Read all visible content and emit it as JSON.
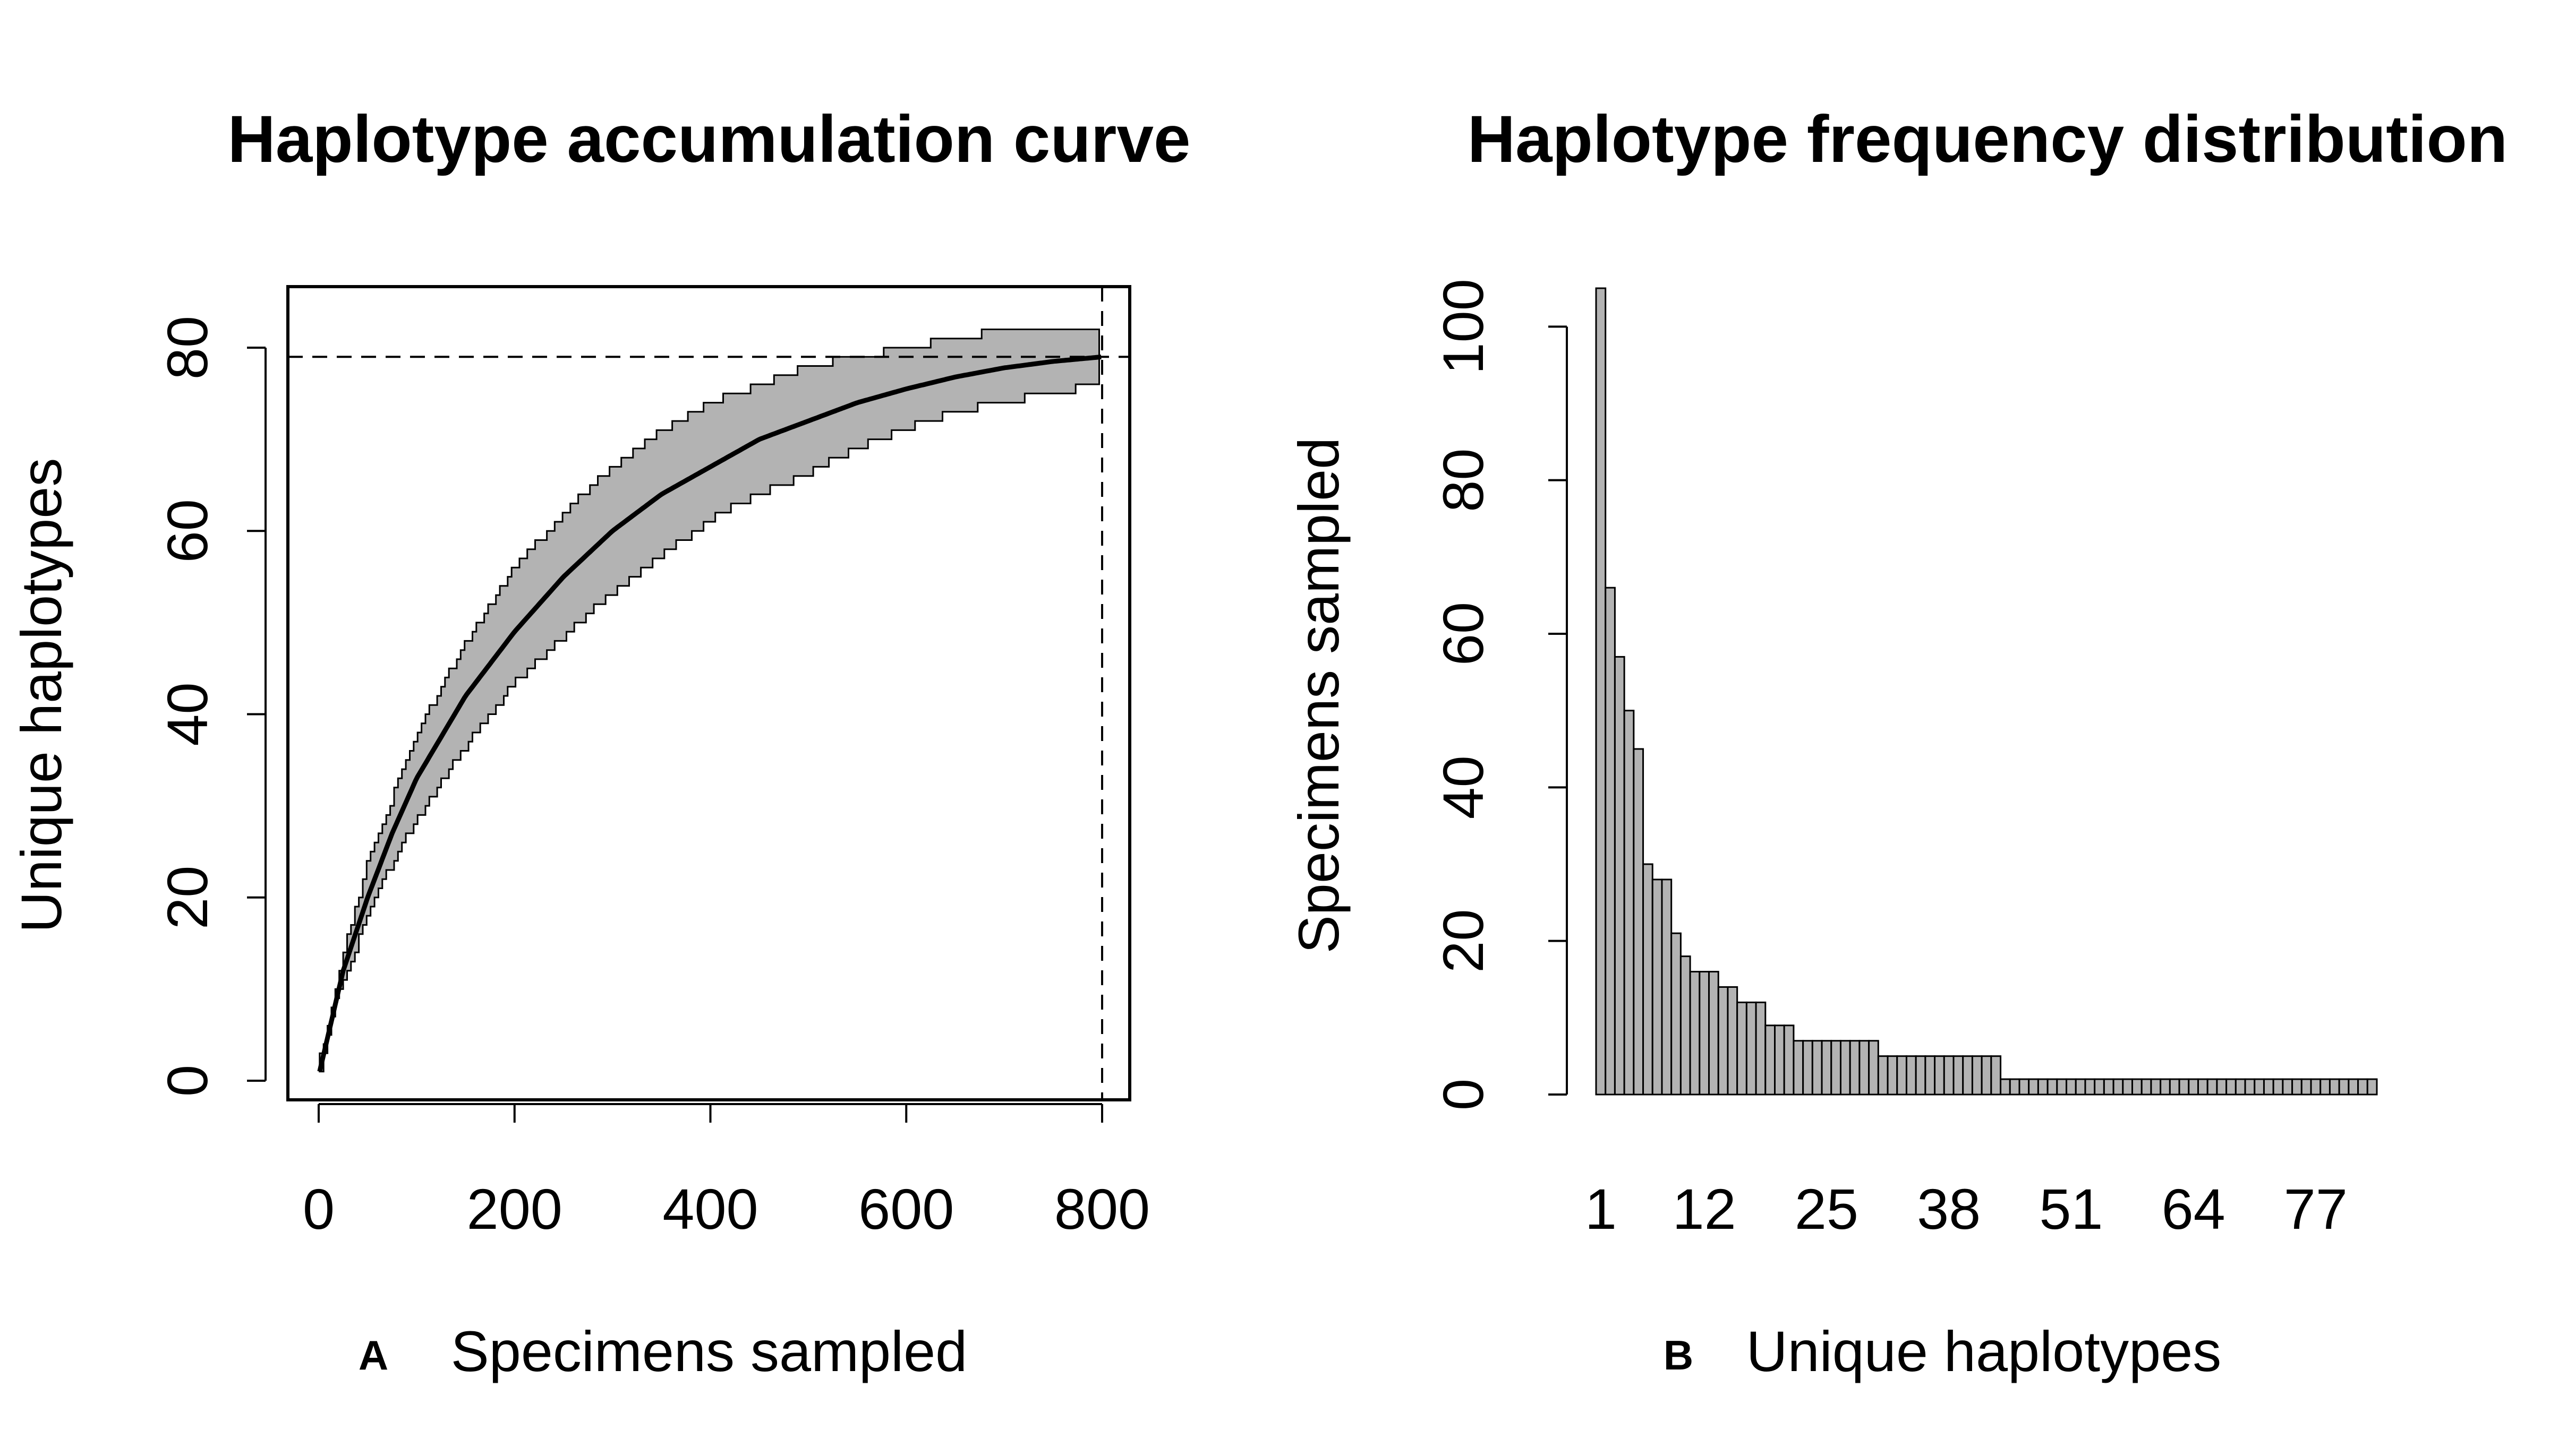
{
  "chart_data": [
    {
      "panel_label": "A",
      "type": "line",
      "title": "Haplotype accumulation curve",
      "xlabel": "Specimens sampled",
      "ylabel": "Unique haplotypes",
      "xlim": [
        0,
        800
      ],
      "ylim": [
        0,
        80
      ],
      "xticks": [
        "0",
        "200",
        "400",
        "600",
        "800"
      ],
      "yticks": [
        "0",
        "20",
        "40",
        "60",
        "80"
      ],
      "total_haplotypes": 79,
      "total_specimens": 800,
      "grid": false,
      "band_color": "#b3b3b3",
      "x": [
        1,
        25,
        50,
        75,
        100,
        150,
        200,
        250,
        300,
        350,
        400,
        450,
        500,
        550,
        600,
        650,
        700,
        750,
        800
      ],
      "series": [
        {
          "name": "",
          "role": "mean",
          "values": [
            1,
            12,
            20,
            27,
            33,
            42,
            49,
            55,
            60,
            64,
            67,
            70,
            72,
            74,
            75.5,
            76.8,
            77.8,
            78.5,
            79
          ]
        },
        {
          "name": "",
          "role": "upper",
          "values": [
            1,
            14,
            24,
            31,
            38,
            48,
            56,
            62,
            67,
            71,
            74,
            76,
            78,
            79,
            80,
            81,
            82,
            82,
            82
          ]
        },
        {
          "name": "",
          "role": "lower",
          "values": [
            1,
            10,
            17,
            23,
            28,
            36,
            43,
            48,
            53,
            57,
            61,
            64,
            66,
            69,
            71,
            73,
            74,
            75,
            76
          ]
        }
      ]
    },
    {
      "panel_label": "B",
      "type": "bar",
      "title": "Haplotype frequency distribution",
      "xlabel": "Unique haplotypes",
      "ylabel": "Specimens sampled",
      "ylim": [
        0,
        105
      ],
      "xticks": [
        "1",
        "12",
        "25",
        "38",
        "51",
        "64",
        "77"
      ],
      "yticks": [
        "0",
        "20",
        "40",
        "60",
        "80",
        "100"
      ],
      "bar_color": "#b3b3b3",
      "values": [
        105,
        66,
        57,
        50,
        45,
        30,
        28,
        28,
        21,
        18,
        16,
        16,
        16,
        14,
        14,
        12,
        12,
        12,
        9,
        9,
        9,
        7,
        7,
        7,
        7,
        7,
        7,
        7,
        7,
        7,
        5,
        5,
        5,
        5,
        5,
        5,
        5,
        5,
        5,
        5,
        5,
        5,
        5,
        2,
        2,
        2,
        2,
        2,
        2,
        2,
        2,
        2,
        2,
        2,
        2,
        2,
        2,
        2,
        2,
        2,
        2,
        2,
        2,
        2,
        2,
        2,
        2,
        2,
        2,
        2,
        2,
        2,
        2,
        2,
        2,
        2,
        2,
        2,
        2,
        2,
        2,
        2,
        2
      ]
    }
  ]
}
